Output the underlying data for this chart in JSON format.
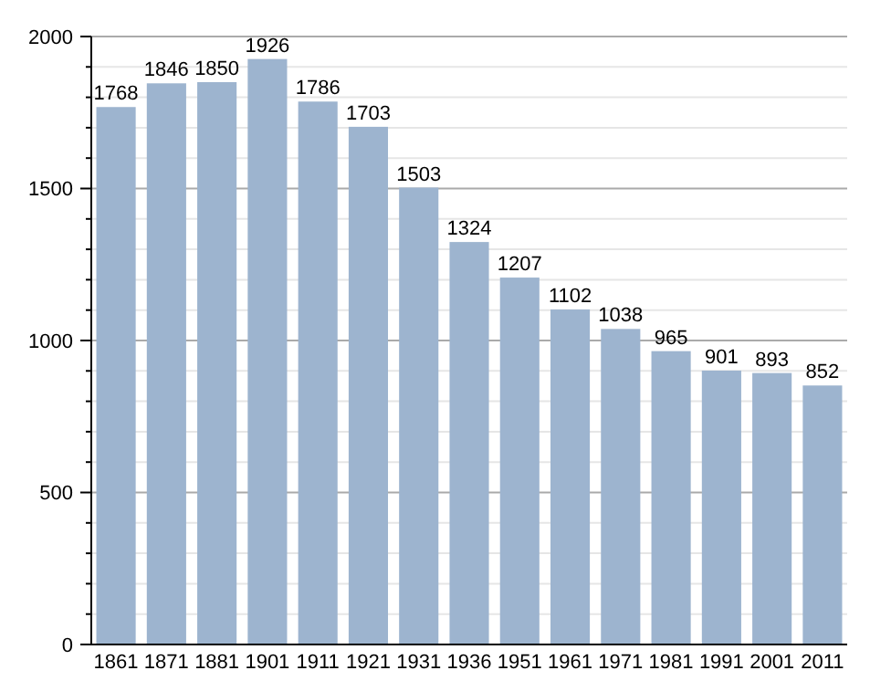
{
  "chart_data": {
    "type": "bar",
    "categories": [
      "1861",
      "1871",
      "1881",
      "1901",
      "1911",
      "1921",
      "1931",
      "1936",
      "1951",
      "1961",
      "1971",
      "1981",
      "1991",
      "2001",
      "2011"
    ],
    "values": [
      1768,
      1846,
      1850,
      1926,
      1786,
      1703,
      1503,
      1324,
      1207,
      1102,
      1038,
      965,
      901,
      893,
      852
    ],
    "color": "#9db4cf",
    "ylim": [
      0,
      2000
    ],
    "yticks": [
      0,
      {
        "value": 100,
        "label": null
      },
      {
        "value": 200,
        "label": null
      },
      {
        "value": 300,
        "label": null
      },
      {
        "value": 400,
        "label": null
      },
      500,
      {
        "value": 600,
        "label": null
      },
      {
        "value": 700,
        "label": null
      },
      {
        "value": 800,
        "label": null
      },
      {
        "value": 900,
        "label": null
      },
      1000,
      {
        "value": 1100,
        "label": null
      },
      {
        "value": 1200,
        "label": null
      },
      {
        "value": 1300,
        "label": null
      },
      {
        "value": 1400,
        "label": null
      },
      1500,
      {
        "value": 1600,
        "label": null
      },
      {
        "value": 1700,
        "label": null
      },
      {
        "value": 1800,
        "label": null
      },
      {
        "value": 1900,
        "label": null
      },
      2000
    ],
    "grid": true,
    "data_labels": true
  }
}
